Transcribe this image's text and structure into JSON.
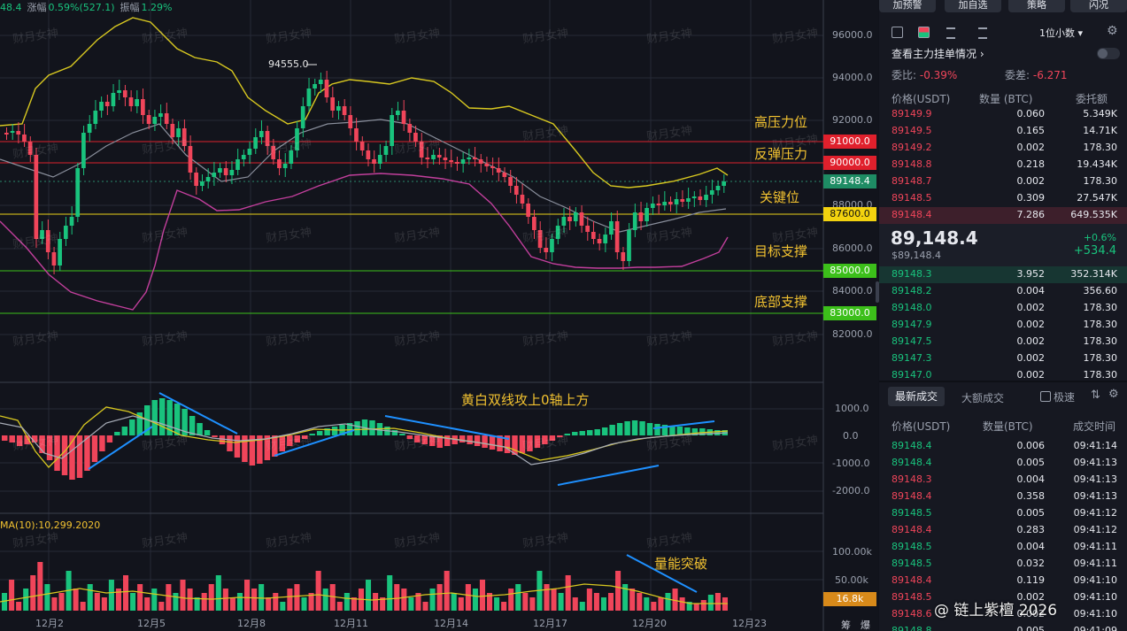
{
  "top_info": {
    "price_fragment": "48.4",
    "change_label": "涨幅",
    "change_value": "0.59%(527.1)",
    "amplitude_label": "振幅",
    "amplitude_value": "1.29%"
  },
  "chart": {
    "y_axis_labels": [
      "96000.0",
      "94000.0",
      "92000.0",
      "90000.0",
      "88000.0",
      "86000.0",
      "84000.0",
      "82000.0"
    ],
    "macd_axis_labels": [
      "1000.0",
      "0.0",
      "-1000.0",
      "-2000.0"
    ],
    "volume_axis_labels": [
      "100.00k",
      "50.00k"
    ],
    "peak_label": "94555.0",
    "ma_label": "MA(10):10,299.2020",
    "date_labels": [
      "12月2",
      "12月5",
      "12月8",
      "12月11",
      "12月14",
      "12月17",
      "12月20",
      "12月23"
    ],
    "price_tags": [
      {
        "text": "91000.0",
        "color": "#e0202c"
      },
      {
        "text": "90000.0",
        "color": "#e0202c"
      },
      {
        "text": "89148.4",
        "color": "#1e8c64"
      },
      {
        "text": "87600.0",
        "color": "#f2d20f"
      },
      {
        "text": "85000.0",
        "color": "#3cbf1a"
      },
      {
        "text": "83000.0",
        "color": "#3cbf1a"
      }
    ],
    "volume_tag": "16.8k",
    "corner_label": "筹",
    "corner_label2": "爆",
    "annotations": {
      "high_resistance": "高压力位",
      "rebound_resistance": "反弹压力",
      "key_level": "关键位",
      "target_support": "目标支撑",
      "bottom_support": "底部支撑",
      "macd_note": "黄白双线攻上0轴上方",
      "volume_note": "量能突破"
    },
    "watermark": "财月女神",
    "footer_watermark": "@ 链上紫檀 2026",
    "colors": {
      "up": "#19c37d",
      "down": "#f0455a",
      "bb_upper": "#e0d020",
      "bb_lower": "#c040a0"
    }
  },
  "panel": {
    "toolbar": [
      "加预警",
      "加自选",
      "策略",
      "闪况"
    ],
    "depth_selector": "1位小数",
    "view_orders_link": "查看主力挂单情况",
    "ratio_label": "委比:",
    "ratio_value": "-0.39%",
    "diff_label": "委差:",
    "diff_value": "-6.271",
    "book_headers": {
      "price": "价格(USDT)",
      "qty": "数量 (BTC)",
      "total": "委托额"
    },
    "asks": [
      {
        "price": "89149.9",
        "qty": "0.060",
        "total": "5.349K"
      },
      {
        "price": "89149.5",
        "qty": "0.165",
        "total": "14.71K"
      },
      {
        "price": "89149.2",
        "qty": "0.002",
        "total": "178.30"
      },
      {
        "price": "89148.8",
        "qty": "0.218",
        "total": "19.434K"
      },
      {
        "price": "89148.7",
        "qty": "0.002",
        "total": "178.30"
      },
      {
        "price": "89148.5",
        "qty": "0.309",
        "total": "27.547K"
      },
      {
        "price": "89148.4",
        "qty": "7.286",
        "total": "649.535K"
      }
    ],
    "last_price": "89,148.4",
    "last_price_usd": "$89,148.4",
    "change_pct": "+0.6%",
    "change_abs": "+534.4",
    "bids": [
      {
        "price": "89148.3",
        "qty": "3.952",
        "total": "352.314K"
      },
      {
        "price": "89148.2",
        "qty": "0.004",
        "total": "356.60"
      },
      {
        "price": "89148.0",
        "qty": "0.002",
        "total": "178.30"
      },
      {
        "price": "89147.9",
        "qty": "0.002",
        "total": "178.30"
      },
      {
        "price": "89147.5",
        "qty": "0.002",
        "total": "178.30"
      },
      {
        "price": "89147.3",
        "qty": "0.002",
        "total": "178.30"
      },
      {
        "price": "89147.0",
        "qty": "0.002",
        "total": "178.30"
      }
    ],
    "trade_tabs": [
      "最新成交",
      "大额成交"
    ],
    "fast_label": "极速",
    "trade_headers": {
      "price": "价格(USDT)",
      "qty": "数量(BTC)",
      "time": "成交时间"
    },
    "trades": [
      {
        "price": "89148.4",
        "qty": "0.006",
        "time": "09:41:14",
        "side": "buy"
      },
      {
        "price": "89148.4",
        "qty": "0.005",
        "time": "09:41:13",
        "side": "buy"
      },
      {
        "price": "89148.3",
        "qty": "0.004",
        "time": "09:41:13",
        "side": "sell"
      },
      {
        "price": "89148.4",
        "qty": "0.358",
        "time": "09:41:13",
        "side": "sell"
      },
      {
        "price": "89148.5",
        "qty": "0.005",
        "time": "09:41:12",
        "side": "buy"
      },
      {
        "price": "89148.4",
        "qty": "0.283",
        "time": "09:41:12",
        "side": "sell"
      },
      {
        "price": "89148.5",
        "qty": "0.004",
        "time": "09:41:11",
        "side": "buy"
      },
      {
        "price": "89148.5",
        "qty": "0.032",
        "time": "09:41:11",
        "side": "buy"
      },
      {
        "price": "89148.4",
        "qty": "0.119",
        "time": "09:41:10",
        "side": "sell"
      },
      {
        "price": "89148.5",
        "qty": "0.002",
        "time": "09:41:10",
        "side": "sell"
      },
      {
        "price": "89148.6",
        "qty": "0.002",
        "time": "09:41:10",
        "side": "sell"
      },
      {
        "price": "89148.8",
        "qty": "0.005",
        "time": "09:41:09",
        "side": "buy"
      }
    ]
  }
}
